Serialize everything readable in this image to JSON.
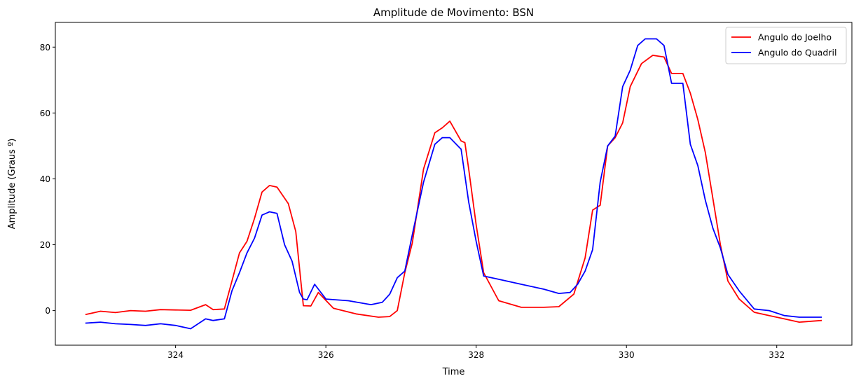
{
  "chart_data": {
    "type": "line",
    "title": "Amplitude de Movimento: BSN",
    "xlabel": "Time",
    "ylabel": "Amplitude (Graus º)",
    "xlim": [
      322.4,
      333.0
    ],
    "ylim": [
      -10.5,
      87.5
    ],
    "xticks": [
      324,
      326,
      328,
      330,
      332
    ],
    "yticks": [
      0,
      20,
      40,
      60,
      80
    ],
    "grid": false,
    "legend": "top-right",
    "series": [
      {
        "name": "Angulo do Joelho",
        "color": "#ff0000",
        "x": [
          322.8,
          323.0,
          323.2,
          323.4,
          323.6,
          323.8,
          324.0,
          324.2,
          324.4,
          324.5,
          324.65,
          324.75,
          324.85,
          324.95,
          325.05,
          325.15,
          325.25,
          325.35,
          325.5,
          325.6,
          325.7,
          325.8,
          325.9,
          326.1,
          326.4,
          326.7,
          326.85,
          326.95,
          327.05,
          327.15,
          327.3,
          327.45,
          327.55,
          327.65,
          327.8,
          327.85,
          327.9,
          328.0,
          328.1,
          328.3,
          328.6,
          328.9,
          329.1,
          329.3,
          329.45,
          329.55,
          329.65,
          329.75,
          329.85,
          329.95,
          330.05,
          330.2,
          330.35,
          330.5,
          330.6,
          330.75,
          330.85,
          330.95,
          331.05,
          331.15,
          331.25,
          331.35,
          331.5,
          331.7,
          331.9,
          332.1,
          332.3,
          332.6
        ],
        "y": [
          -1.2,
          -0.2,
          -0.6,
          0.0,
          -0.2,
          0.3,
          0.2,
          0.1,
          1.8,
          0.3,
          0.5,
          9.0,
          17.5,
          21.0,
          28.0,
          36.0,
          38.0,
          37.5,
          32.5,
          24.0,
          1.5,
          1.4,
          5.5,
          0.7,
          -1.0,
          -2.0,
          -1.8,
          0.0,
          11.5,
          20.5,
          43.0,
          54.0,
          55.5,
          57.5,
          51.5,
          51.0,
          43.0,
          26.0,
          11.5,
          3.0,
          1.0,
          1.0,
          1.2,
          5.0,
          16.0,
          30.5,
          32.0,
          50.0,
          52.5,
          57.0,
          68.0,
          75.0,
          77.5,
          77.0,
          72.0,
          72.0,
          66.0,
          58.0,
          48.0,
          34.0,
          20.0,
          9.0,
          3.5,
          -0.5,
          -1.5,
          -2.5,
          -3.5,
          -3.0
        ]
      },
      {
        "name": "Angulo do Quadril",
        "color": "#0000ff",
        "x": [
          322.8,
          323.0,
          323.2,
          323.4,
          323.6,
          323.8,
          324.0,
          324.2,
          324.4,
          324.5,
          324.65,
          324.75,
          324.85,
          324.95,
          325.05,
          325.15,
          325.25,
          325.35,
          325.45,
          325.55,
          325.65,
          325.7,
          325.75,
          325.85,
          326.0,
          326.3,
          326.6,
          326.75,
          326.85,
          326.95,
          327.05,
          327.15,
          327.3,
          327.45,
          327.55,
          327.65,
          327.8,
          327.9,
          328.0,
          328.1,
          328.3,
          328.6,
          328.9,
          329.1,
          329.25,
          329.35,
          329.45,
          329.55,
          329.65,
          329.75,
          329.85,
          329.95,
          330.05,
          330.15,
          330.25,
          330.4,
          330.5,
          330.6,
          330.75,
          330.85,
          330.95,
          331.05,
          331.15,
          331.25,
          331.35,
          331.5,
          331.7,
          331.9,
          332.1,
          332.3,
          332.6
        ],
        "y": [
          -3.8,
          -3.5,
          -4.0,
          -4.2,
          -4.5,
          -4.0,
          -4.5,
          -5.5,
          -2.5,
          -3.0,
          -2.5,
          6.0,
          11.5,
          17.5,
          22.0,
          29.0,
          30.0,
          29.5,
          20.0,
          15.0,
          5.5,
          3.5,
          3.3,
          8.0,
          3.5,
          3.0,
          1.8,
          2.5,
          5.0,
          10.0,
          12.0,
          23.0,
          39.0,
          50.5,
          52.5,
          52.5,
          49.0,
          33.0,
          21.0,
          10.5,
          9.5,
          8.0,
          6.5,
          5.2,
          5.5,
          8.0,
          12.0,
          18.5,
          39.0,
          50.0,
          53.0,
          68.0,
          73.0,
          80.5,
          82.5,
          82.5,
          80.5,
          69.0,
          69.0,
          50.5,
          44.0,
          33.5,
          25.0,
          19.0,
          11.0,
          6.0,
          0.5,
          0.0,
          -1.5,
          -2.0,
          -2.0
        ]
      }
    ]
  }
}
